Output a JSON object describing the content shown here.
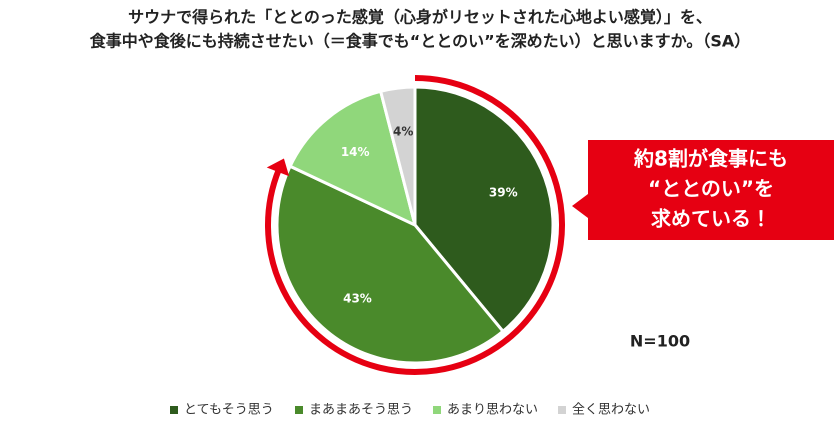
{
  "chart_data": {
    "type": "pie",
    "title": [
      "サウナで得られた「ととのった感覚（心身がリセットされた心地よい感覚）」を、",
      "食事中や食後にも持続させたい（＝食事でも“ととのい”を深めたい）と思いますか。（SA）"
    ],
    "categories": [
      "とてもそう思う",
      "まあまあそう思う",
      "あまり思わない",
      "全く思わない"
    ],
    "values": [
      39,
      43,
      14,
      4
    ],
    "value_labels": [
      "39%",
      "43%",
      "14%",
      "4%"
    ],
    "colors": [
      "#2e5b1d",
      "#4a8a2b",
      "#90d77b",
      "#d3d3d3"
    ],
    "annotation": [
      "約8割が食事にも",
      "“ととのい”を",
      "求めている！"
    ],
    "note": "N=100",
    "legend": "bottom"
  }
}
